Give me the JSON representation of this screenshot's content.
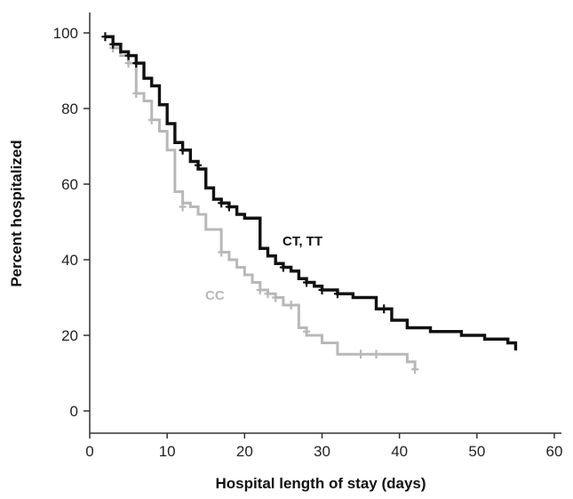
{
  "chart_data": {
    "type": "line",
    "title": "",
    "xlabel": "Hospital length of stay (days)",
    "ylabel": "Percent hospitalized",
    "xlim": [
      0,
      60
    ],
    "ylim": [
      0,
      100
    ],
    "xticks": [
      0,
      10,
      20,
      30,
      40,
      50,
      60
    ],
    "yticks": [
      0,
      20,
      40,
      60,
      80,
      100
    ],
    "grid": false,
    "legend": "inline labels",
    "series": [
      {
        "name": "CT, TT",
        "color": "#111111",
        "step": true,
        "x": [
          2,
          3,
          4,
          5,
          6,
          7,
          8,
          9,
          10,
          11,
          12,
          13,
          14,
          15,
          16,
          17,
          18,
          19,
          20,
          22,
          23,
          24,
          25,
          26,
          27,
          28,
          29,
          30,
          32,
          34,
          37,
          39,
          41,
          44,
          48,
          51,
          54,
          55
        ],
        "y": [
          99,
          97,
          95,
          94,
          92,
          88,
          86,
          81,
          76,
          71,
          69,
          66,
          64,
          59,
          56,
          55,
          54,
          52,
          51,
          43,
          41,
          39,
          38,
          37,
          35,
          34,
          33,
          32,
          31,
          30,
          27,
          24,
          22,
          21,
          20,
          19,
          18,
          16
        ],
        "censored": [
          [
            2,
            99
          ],
          [
            3,
            97
          ],
          [
            5,
            94
          ],
          [
            6,
            92
          ],
          [
            12,
            69
          ],
          [
            14,
            65
          ],
          [
            17,
            55
          ],
          [
            18,
            54
          ],
          [
            25,
            38
          ],
          [
            28,
            34
          ],
          [
            30,
            32
          ],
          [
            32,
            31
          ],
          [
            38,
            27
          ]
        ]
      },
      {
        "name": "CC",
        "color": "#b8b8b8",
        "step": true,
        "x": [
          2,
          3,
          4,
          5,
          6,
          7,
          8,
          9,
          10,
          11,
          12,
          13,
          14,
          15,
          17,
          18,
          19,
          20,
          21,
          22,
          23,
          24,
          25,
          27,
          28,
          30,
          32,
          35,
          38,
          41,
          42
        ],
        "y": [
          99,
          96,
          94,
          92,
          84,
          82,
          77,
          74,
          69,
          58,
          55,
          54,
          52,
          48,
          42,
          40,
          38,
          36,
          34,
          32,
          31,
          30,
          28,
          22,
          20,
          18,
          15,
          15,
          15,
          13,
          11
        ],
        "censored": [
          [
            3,
            96
          ],
          [
            5,
            92
          ],
          [
            6,
            84
          ],
          [
            8,
            77
          ],
          [
            12,
            54
          ],
          [
            17,
            42
          ],
          [
            22,
            32
          ],
          [
            23,
            31
          ],
          [
            24,
            30
          ],
          [
            26,
            28
          ],
          [
            28,
            21
          ],
          [
            35,
            15
          ],
          [
            37,
            15
          ],
          [
            42,
            11
          ]
        ]
      }
    ]
  }
}
